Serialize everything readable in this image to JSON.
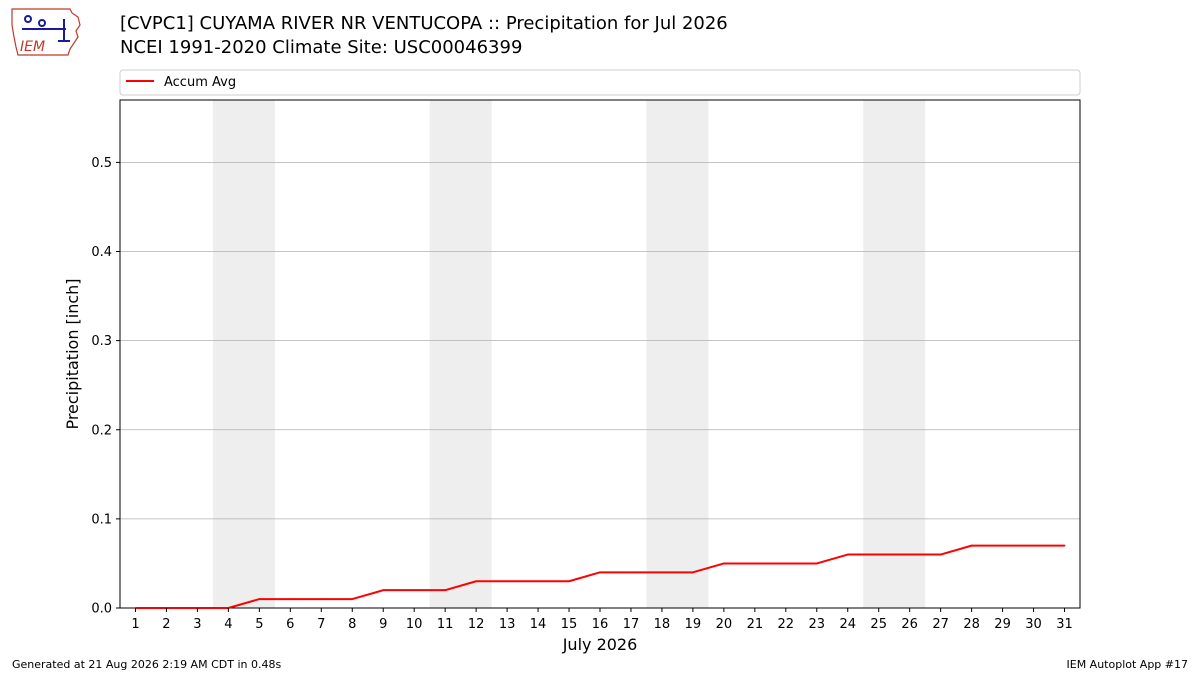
{
  "logo": {
    "label": "IEM"
  },
  "header": {
    "title_line1": "[CVPC1] CUYAMA RIVER NR VENTUCOPA :: Precipitation for Jul 2026",
    "title_line2": "NCEI 1991-2020 Climate Site: USC00046399"
  },
  "footer": {
    "generated": "Generated at 21 Aug 2026 2:19 AM CDT in 0.48s",
    "app": "IEM Autoplot App #17"
  },
  "colors": {
    "series": "#ff0000",
    "weekend_band": "#eeeeee",
    "grid": "#b0b0b0"
  },
  "chart_data": {
    "type": "line",
    "xlabel": "July 2026",
    "ylabel": "Precipitation [inch]",
    "xlim": [
      0.5,
      31.5
    ],
    "ylim": [
      0,
      0.57
    ],
    "yticks": [
      0.0,
      0.1,
      0.2,
      0.3,
      0.4,
      0.5
    ],
    "ytick_labels": [
      "0.0",
      "0.1",
      "0.2",
      "0.3",
      "0.4",
      "0.5"
    ],
    "xticks": [
      1,
      2,
      3,
      4,
      5,
      6,
      7,
      8,
      9,
      10,
      11,
      12,
      13,
      14,
      15,
      16,
      17,
      18,
      19,
      20,
      21,
      22,
      23,
      24,
      25,
      26,
      27,
      28,
      29,
      30,
      31
    ],
    "xtick_labels": [
      "1",
      "2",
      "3",
      "4",
      "5",
      "6",
      "7",
      "8",
      "9",
      "10",
      "11",
      "12",
      "13",
      "14",
      "15",
      "16",
      "17",
      "18",
      "19",
      "20",
      "21",
      "22",
      "23",
      "24",
      "25",
      "26",
      "27",
      "28",
      "29",
      "30",
      "31"
    ],
    "grid": "horizontal",
    "legend": {
      "position": "top",
      "entries": [
        "Accum Avg"
      ]
    },
    "weekend_spans": [
      [
        3.5,
        5.5
      ],
      [
        10.5,
        12.5
      ],
      [
        17.5,
        19.5
      ],
      [
        24.5,
        26.5
      ]
    ],
    "series": [
      {
        "name": "Accum Avg",
        "color": "#ff0000",
        "x": [
          1,
          2,
          3,
          4,
          5,
          6,
          7,
          8,
          9,
          10,
          11,
          12,
          13,
          14,
          15,
          16,
          17,
          18,
          19,
          20,
          21,
          22,
          23,
          24,
          25,
          26,
          27,
          28,
          29,
          30,
          31
        ],
        "y": [
          0.0,
          0.0,
          0.0,
          0.0,
          0.01,
          0.01,
          0.01,
          0.01,
          0.02,
          0.02,
          0.02,
          0.03,
          0.03,
          0.03,
          0.03,
          0.04,
          0.04,
          0.04,
          0.04,
          0.05,
          0.05,
          0.05,
          0.05,
          0.06,
          0.06,
          0.06,
          0.06,
          0.07,
          0.07,
          0.07,
          0.07
        ]
      }
    ]
  }
}
